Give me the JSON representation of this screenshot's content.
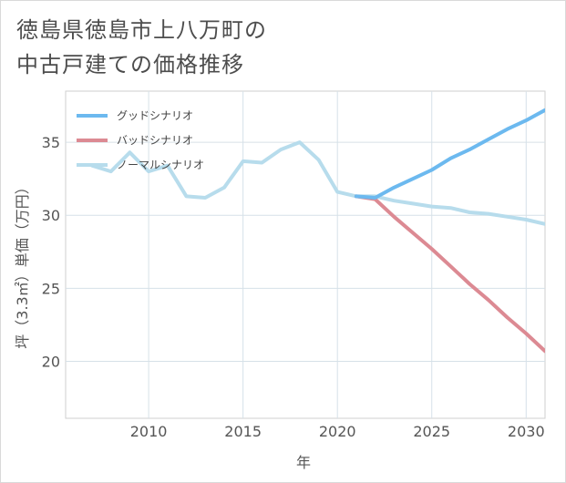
{
  "title_lines": [
    "徳島県徳島市上八万町の",
    "中古戸建ての価格推移"
  ],
  "chart_data": {
    "type": "line",
    "title": "徳島県徳島市上八万町の中古戸建ての価格推移",
    "xlabel": "年",
    "ylabel": "坪（3.3㎡）単価（万円）",
    "xlim": [
      2005.6,
      2031
    ],
    "ylim": [
      16.1,
      38.5
    ],
    "xticks": [
      2010,
      2015,
      2020,
      2025,
      2030
    ],
    "yticks": [
      20,
      25,
      30,
      35
    ],
    "grid": true,
    "legend_position": "top-left",
    "series": [
      {
        "name": "グッドシナリオ",
        "color": "#6cb9ef",
        "x": [
          2021,
          2022,
          2023,
          2024,
          2025,
          2026,
          2027,
          2028,
          2029,
          2030,
          2031
        ],
        "y": [
          31.3,
          31.2,
          31.9,
          32.5,
          33.1,
          33.9,
          34.5,
          35.2,
          35.9,
          36.5,
          37.2
        ]
      },
      {
        "name": "バッドシナリオ",
        "color": "#dc8a93",
        "x": [
          2021,
          2022,
          2023,
          2024,
          2025,
          2026,
          2027,
          2028,
          2029,
          2030,
          2031
        ],
        "y": [
          31.3,
          31.1,
          29.9,
          28.8,
          27.7,
          26.5,
          25.3,
          24.2,
          23.0,
          21.9,
          20.7
        ]
      },
      {
        "name": "ノーマルシナリオ",
        "color": "#b7dcec",
        "x": [
          2007,
          2008,
          2009,
          2010,
          2011,
          2012,
          2013,
          2014,
          2015,
          2016,
          2017,
          2018,
          2019,
          2020,
          2021,
          2022,
          2023,
          2024,
          2025,
          2026,
          2027,
          2028,
          2029,
          2030,
          2031
        ],
        "y": [
          33.4,
          33.0,
          34.3,
          33.0,
          33.4,
          31.3,
          31.2,
          31.9,
          33.7,
          33.6,
          34.5,
          35.0,
          33.8,
          31.6,
          31.3,
          31.3,
          31.0,
          30.8,
          30.6,
          30.5,
          30.2,
          30.1,
          29.9,
          29.7,
          29.4
        ]
      }
    ]
  }
}
